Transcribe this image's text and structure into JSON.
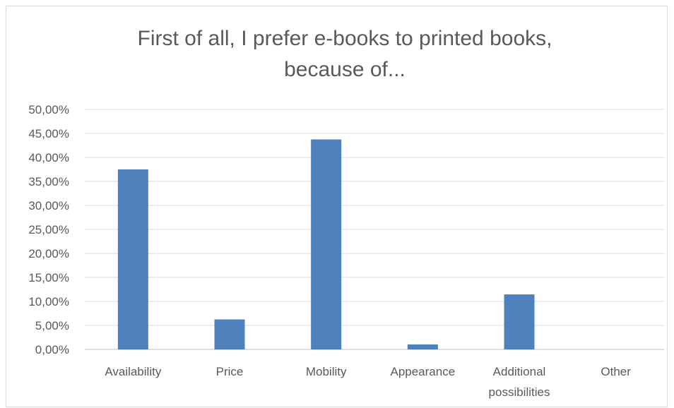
{
  "chart_data": {
    "type": "bar",
    "title_lines": [
      "First of all, I prefer e-books to printed books,",
      "because of..."
    ],
    "categories": [
      "Availability",
      "Price",
      "Mobility",
      "Appearance",
      "Additional possibilities",
      "Other"
    ],
    "category_label_lines": [
      [
        "Availability"
      ],
      [
        "Price"
      ],
      [
        "Mobility"
      ],
      [
        "Appearance"
      ],
      [
        "Additional",
        "possibilities"
      ],
      [
        "Other"
      ]
    ],
    "values": [
      37.5,
      6.25,
      43.75,
      1.04,
      11.46,
      0
    ],
    "ylim": [
      0,
      50
    ],
    "yticks": [
      0,
      5,
      10,
      15,
      20,
      25,
      30,
      35,
      40,
      45,
      50
    ],
    "ytick_labels": [
      "0,00%",
      "5,00%",
      "10,00%",
      "15,00%",
      "20,00%",
      "25,00%",
      "30,00%",
      "35,00%",
      "40,00%",
      "45,00%",
      "50,00%"
    ],
    "bar_color": "#4f81bd",
    "grid": true,
    "legend": "none"
  }
}
